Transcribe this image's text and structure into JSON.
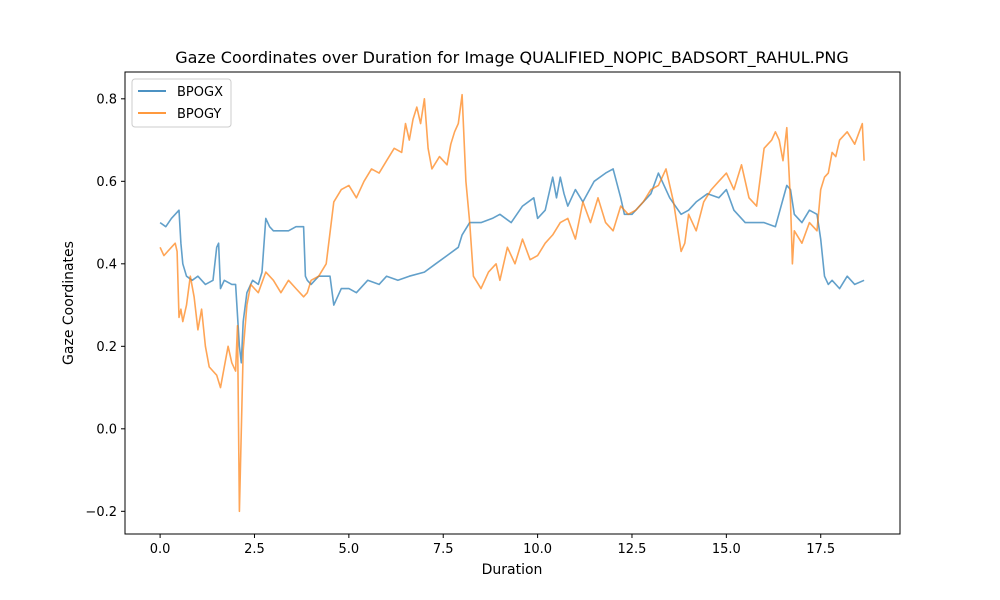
{
  "chart_data": {
    "type": "line",
    "title": "Gaze Coordinates over Duration for Image QUALIFIED_NOPIC_BADSORT_RAHUL.PNG",
    "xlabel": "Duration",
    "ylabel": "Gaze Coordinates",
    "xlim": [
      -0.93,
      19.6
    ],
    "ylim": [
      -0.255,
      0.865
    ],
    "xticks": [
      0.0,
      2.5,
      5.0,
      7.5,
      10.0,
      12.5,
      15.0,
      17.5
    ],
    "xtick_labels": [
      "0.0",
      "2.5",
      "5.0",
      "7.5",
      "10.0",
      "12.5",
      "15.0",
      "17.5"
    ],
    "yticks": [
      -0.2,
      0.0,
      0.2,
      0.4,
      0.6,
      0.8
    ],
    "ytick_labels": [
      "−0.2",
      "0.0",
      "0.2",
      "0.4",
      "0.6",
      "0.8"
    ],
    "legend": "top-left",
    "grid": false,
    "series": [
      {
        "name": "BPOGX",
        "color": "#1f77b4",
        "x": [
          0.0,
          0.15,
          0.3,
          0.4,
          0.5,
          0.55,
          0.6,
          0.7,
          0.85,
          1.0,
          1.2,
          1.4,
          1.5,
          1.55,
          1.6,
          1.7,
          1.9,
          2.0,
          2.1,
          2.15,
          2.2,
          2.3,
          2.45,
          2.6,
          2.7,
          2.8,
          2.9,
          3.0,
          3.2,
          3.4,
          3.6,
          3.8,
          3.85,
          3.9,
          4.0,
          4.2,
          4.5,
          4.6,
          4.8,
          5.0,
          5.2,
          5.5,
          5.8,
          6.0,
          6.3,
          6.6,
          7.0,
          7.3,
          7.6,
          7.9,
          8.0,
          8.2,
          8.5,
          8.8,
          9.0,
          9.3,
          9.6,
          9.9,
          10.0,
          10.2,
          10.4,
          10.5,
          10.6,
          10.7,
          10.8,
          11.0,
          11.2,
          11.5,
          11.8,
          12.0,
          12.2,
          12.3,
          12.5,
          12.8,
          13.0,
          13.2,
          13.5,
          13.8,
          14.0,
          14.2,
          14.5,
          14.8,
          15.0,
          15.2,
          15.5,
          15.8,
          16.0,
          16.3,
          16.6,
          16.7,
          16.8,
          17.0,
          17.2,
          17.4,
          17.5,
          17.6,
          17.7,
          17.8,
          18.0,
          18.2,
          18.4,
          18.65
        ],
        "values": [
          0.5,
          0.49,
          0.51,
          0.52,
          0.53,
          0.45,
          0.4,
          0.37,
          0.36,
          0.37,
          0.35,
          0.36,
          0.44,
          0.45,
          0.34,
          0.36,
          0.35,
          0.35,
          0.2,
          0.16,
          0.26,
          0.33,
          0.36,
          0.35,
          0.38,
          0.51,
          0.49,
          0.48,
          0.48,
          0.48,
          0.49,
          0.49,
          0.37,
          0.36,
          0.35,
          0.37,
          0.37,
          0.3,
          0.34,
          0.34,
          0.33,
          0.36,
          0.35,
          0.37,
          0.36,
          0.37,
          0.38,
          0.4,
          0.42,
          0.44,
          0.47,
          0.5,
          0.5,
          0.51,
          0.52,
          0.5,
          0.54,
          0.56,
          0.51,
          0.53,
          0.61,
          0.56,
          0.61,
          0.57,
          0.54,
          0.58,
          0.55,
          0.6,
          0.62,
          0.63,
          0.56,
          0.52,
          0.52,
          0.55,
          0.57,
          0.62,
          0.56,
          0.52,
          0.53,
          0.55,
          0.57,
          0.56,
          0.58,
          0.53,
          0.5,
          0.5,
          0.5,
          0.49,
          0.59,
          0.58,
          0.52,
          0.5,
          0.53,
          0.52,
          0.46,
          0.37,
          0.35,
          0.36,
          0.34,
          0.37,
          0.35,
          0.36
        ]
      },
      {
        "name": "BPOGY",
        "color": "#ff7f0e",
        "x": [
          0.0,
          0.1,
          0.2,
          0.3,
          0.4,
          0.45,
          0.5,
          0.55,
          0.6,
          0.7,
          0.8,
          0.9,
          1.0,
          1.1,
          1.2,
          1.3,
          1.4,
          1.5,
          1.6,
          1.7,
          1.8,
          1.9,
          2.0,
          2.05,
          2.1,
          2.2,
          2.3,
          2.4,
          2.5,
          2.6,
          2.8,
          3.0,
          3.2,
          3.4,
          3.6,
          3.8,
          3.9,
          4.0,
          4.2,
          4.4,
          4.6,
          4.8,
          5.0,
          5.2,
          5.4,
          5.6,
          5.8,
          6.0,
          6.2,
          6.4,
          6.5,
          6.6,
          6.7,
          6.8,
          6.9,
          7.0,
          7.1,
          7.2,
          7.4,
          7.6,
          7.7,
          7.8,
          7.9,
          8.0,
          8.1,
          8.2,
          8.3,
          8.5,
          8.7,
          8.9,
          9.0,
          9.2,
          9.4,
          9.6,
          9.8,
          10.0,
          10.2,
          10.4,
          10.6,
          10.8,
          11.0,
          11.2,
          11.4,
          11.6,
          11.8,
          12.0,
          12.2,
          12.4,
          12.6,
          12.8,
          13.0,
          13.2,
          13.4,
          13.6,
          13.8,
          13.9,
          14.0,
          14.2,
          14.4,
          14.6,
          14.8,
          15.0,
          15.2,
          15.4,
          15.6,
          15.8,
          16.0,
          16.2,
          16.3,
          16.4,
          16.5,
          16.6,
          16.7,
          16.75,
          16.8,
          17.0,
          17.2,
          17.4,
          17.5,
          17.6,
          17.7,
          17.8,
          17.9,
          18.0,
          18.2,
          18.4,
          18.6,
          18.65
        ],
        "values": [
          0.44,
          0.42,
          0.43,
          0.44,
          0.45,
          0.43,
          0.27,
          0.29,
          0.26,
          0.3,
          0.37,
          0.32,
          0.24,
          0.29,
          0.2,
          0.15,
          0.14,
          0.13,
          0.1,
          0.15,
          0.2,
          0.16,
          0.14,
          0.25,
          -0.2,
          0.19,
          0.3,
          0.35,
          0.34,
          0.33,
          0.38,
          0.36,
          0.33,
          0.36,
          0.34,
          0.32,
          0.33,
          0.36,
          0.37,
          0.4,
          0.55,
          0.58,
          0.59,
          0.56,
          0.6,
          0.63,
          0.62,
          0.65,
          0.68,
          0.67,
          0.74,
          0.7,
          0.75,
          0.78,
          0.74,
          0.8,
          0.68,
          0.63,
          0.66,
          0.64,
          0.69,
          0.72,
          0.74,
          0.81,
          0.6,
          0.5,
          0.37,
          0.34,
          0.38,
          0.4,
          0.36,
          0.44,
          0.4,
          0.46,
          0.41,
          0.42,
          0.45,
          0.47,
          0.5,
          0.51,
          0.46,
          0.55,
          0.5,
          0.56,
          0.5,
          0.48,
          0.54,
          0.52,
          0.53,
          0.55,
          0.58,
          0.59,
          0.63,
          0.55,
          0.43,
          0.45,
          0.52,
          0.48,
          0.55,
          0.58,
          0.6,
          0.62,
          0.58,
          0.64,
          0.56,
          0.54,
          0.68,
          0.7,
          0.72,
          0.7,
          0.65,
          0.73,
          0.55,
          0.4,
          0.48,
          0.45,
          0.5,
          0.48,
          0.58,
          0.61,
          0.62,
          0.67,
          0.66,
          0.7,
          0.72,
          0.69,
          0.74,
          0.65
        ]
      }
    ]
  }
}
